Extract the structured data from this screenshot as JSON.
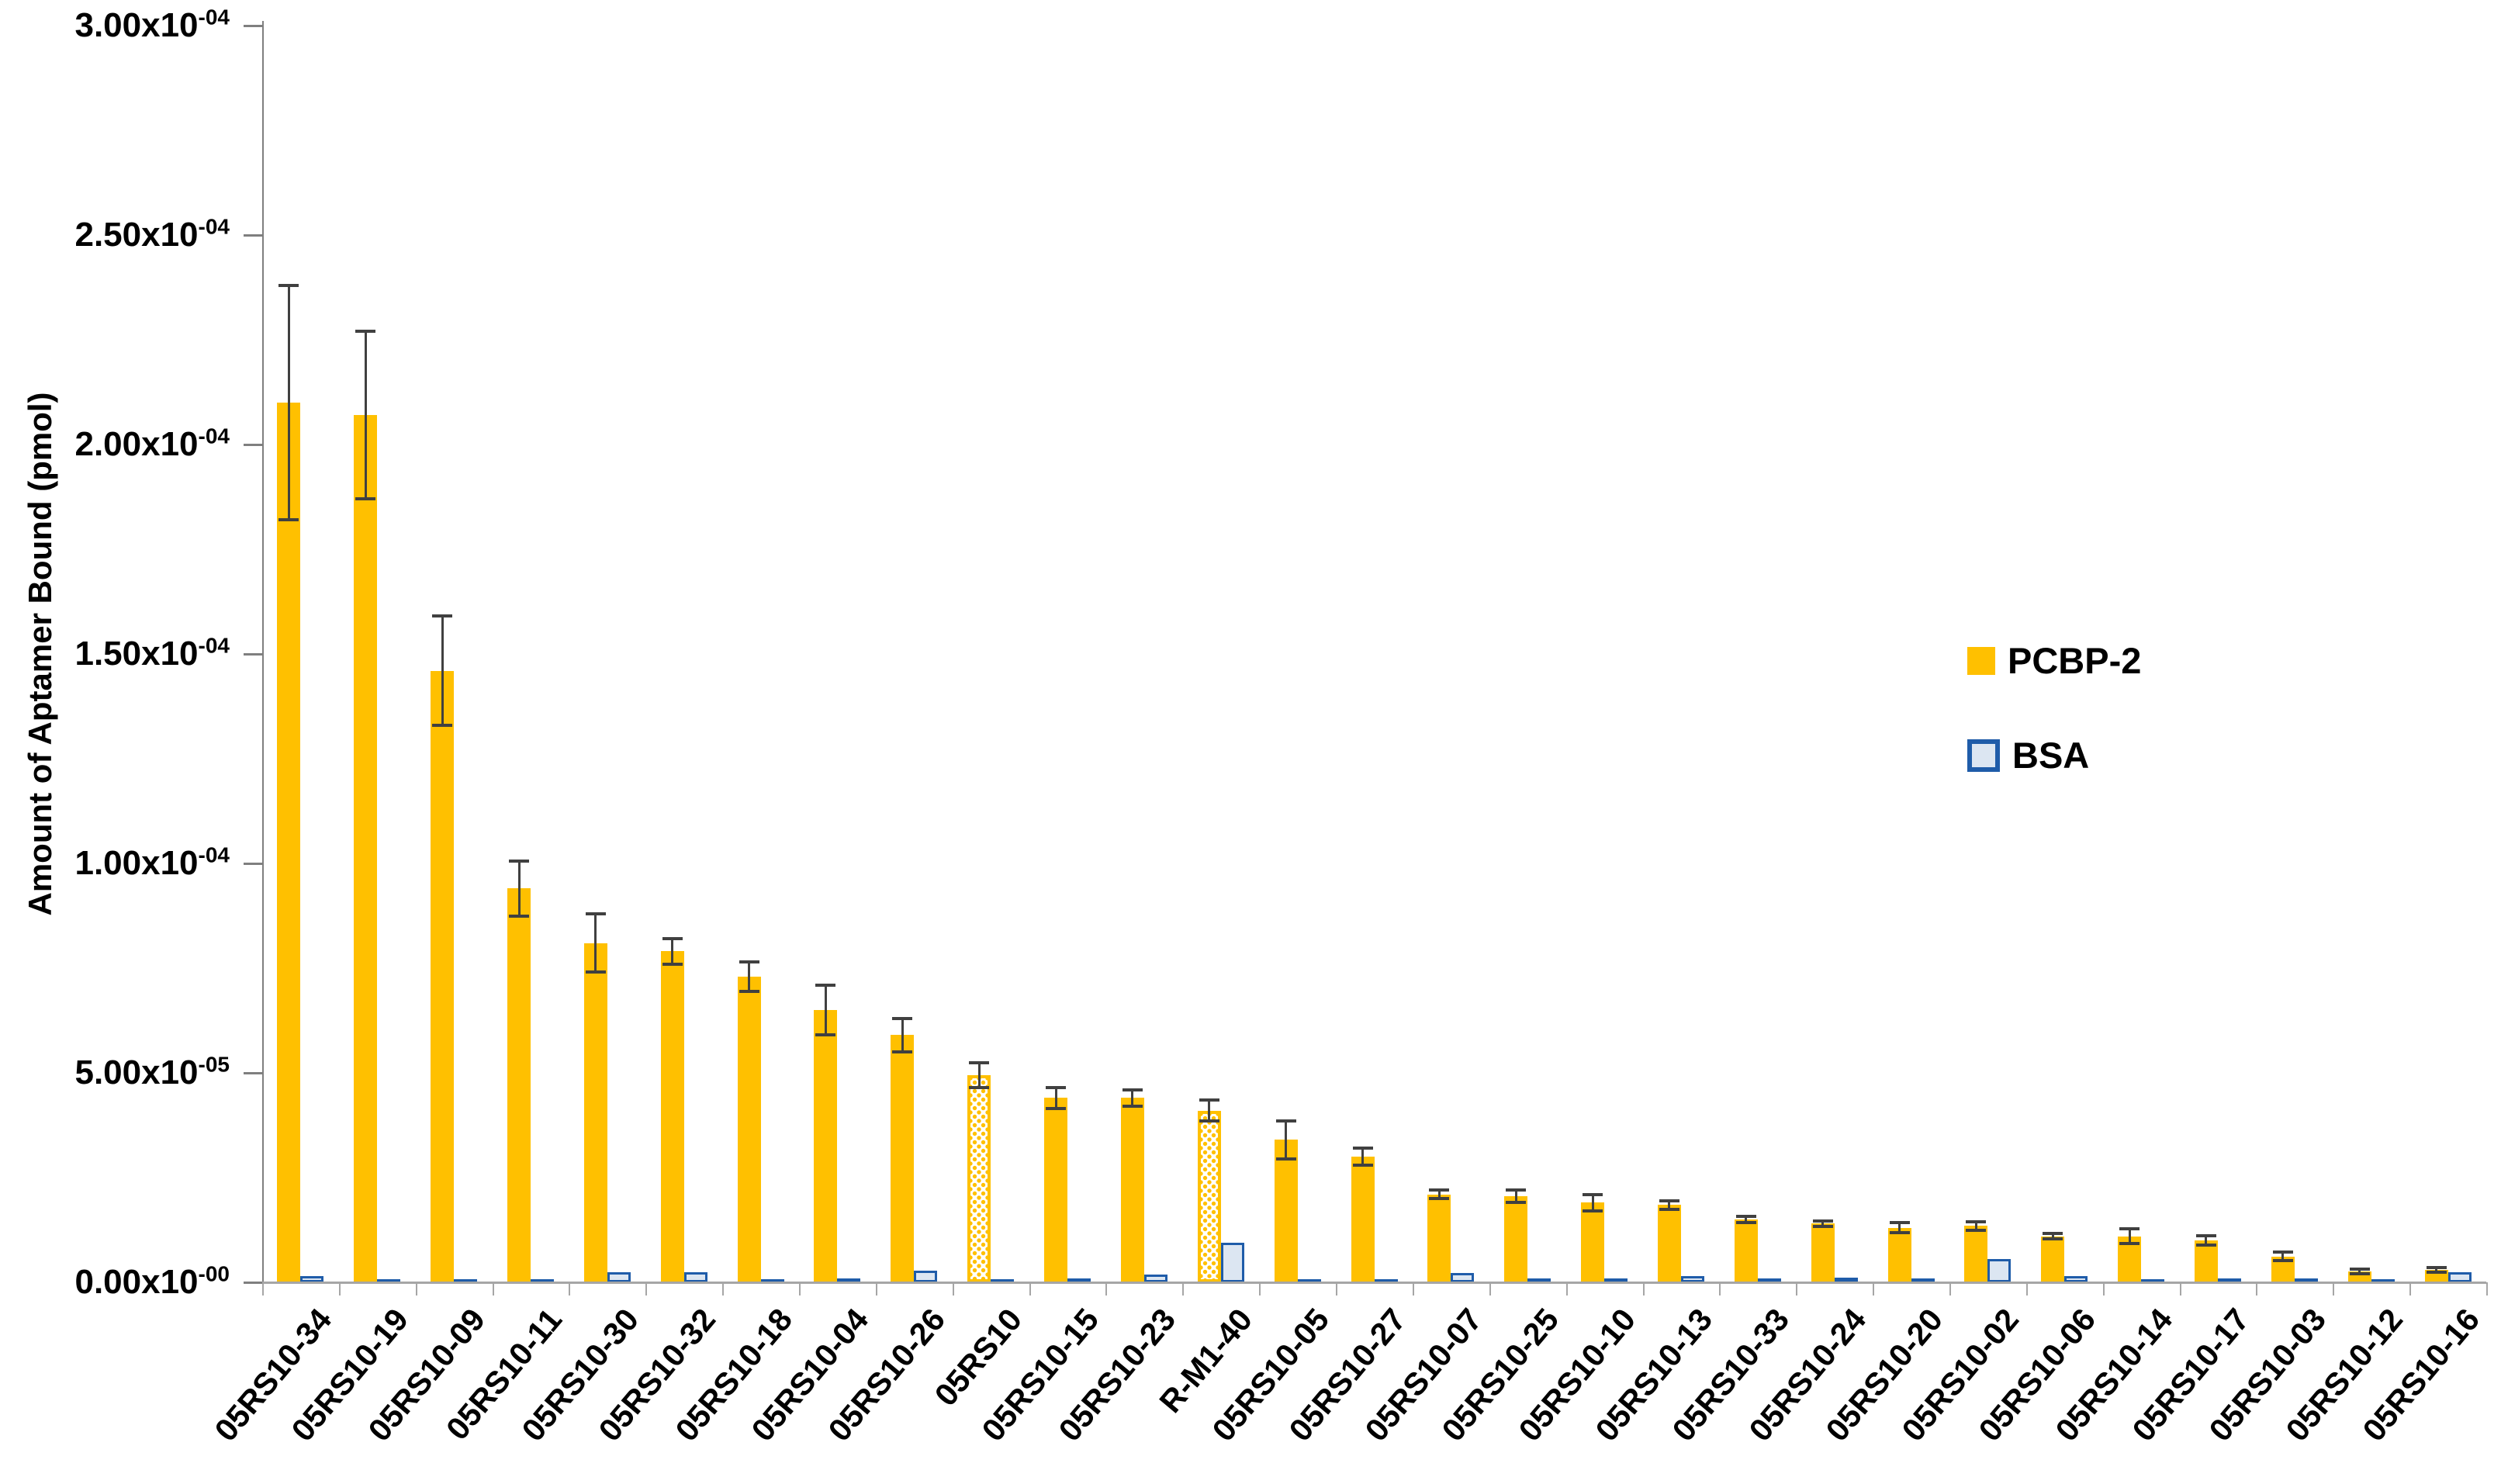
{
  "chart_data": {
    "type": "bar",
    "title": "",
    "xlabel": "",
    "ylabel": "Amount of Aptamer Bound (pmol)",
    "ylim": [
      0,
      0.0003
    ],
    "grid": false,
    "legend_position": "right-middle",
    "y_ticks": [
      {
        "value": 0.0003,
        "base": "3.00x10",
        "exp": "-04"
      },
      {
        "value": 0.00025,
        "base": "2.50x10",
        "exp": "-04"
      },
      {
        "value": 0.0002,
        "base": "2.00x10",
        "exp": "-04"
      },
      {
        "value": 0.00015,
        "base": "1.50x10",
        "exp": "-04"
      },
      {
        "value": 0.0001,
        "base": "1.00x10",
        "exp": "-04"
      },
      {
        "value": 5e-05,
        "base": "5.00x10",
        "exp": "-05"
      },
      {
        "value": 0.0,
        "base": "0.00x10",
        "exp": "-00"
      }
    ],
    "categories": [
      "05RS10-34",
      "05RS10-19",
      "05RS10-09",
      "05RS10-11",
      "05RS10-30",
      "05RS10-32",
      "05RS10-18",
      "05RS10-04",
      "05RS10-26",
      "05RS10",
      "05RS10-15",
      "05RS10-23",
      "R-M1-40",
      "05RS10-05",
      "05RS10-27",
      "05RS10-07",
      "05RS10-25",
      "05RS10-10",
      "05RS10-13",
      "05RS10-33",
      "05RS10-24",
      "05RS10-20",
      "05RS10-02",
      "05RS10-06",
      "05RS10-14",
      "05RS10-17",
      "05RS10-03",
      "05RS10-12",
      "05RS10-16"
    ],
    "series": [
      {
        "name": "PCBP-2",
        "color": "#FFC000",
        "dotted_pattern_categories": [
          "05RS10",
          "R-M1-40"
        ],
        "values": [
          0.00021,
          0.000207,
          0.000146,
          9.4e-05,
          8.1e-05,
          7.9e-05,
          7.3e-05,
          6.5e-05,
          5.9e-05,
          4.95e-05,
          4.4e-05,
          4.4e-05,
          4.1e-05,
          3.4e-05,
          3e-05,
          2.1e-05,
          2.05e-05,
          1.9e-05,
          1.85e-05,
          1.5e-05,
          1.4e-05,
          1.3e-05,
          1.35e-05,
          1.1e-05,
          1.1e-05,
          1e-05,
          6.2e-06,
          2.6e-06,
          3e-06
        ],
        "errors": [
          2.8e-05,
          2e-05,
          1.3e-05,
          6.5e-06,
          7e-06,
          3e-06,
          3.5e-06,
          6e-06,
          4e-06,
          3e-06,
          2.5e-06,
          2e-06,
          2.5e-06,
          4.5e-06,
          2e-06,
          1e-06,
          1.5e-06,
          2e-06,
          1e-06,
          8e-07,
          6e-07,
          1.2e-06,
          1e-06,
          6e-07,
          1.8e-06,
          1.2e-06,
          1e-06,
          5e-07,
          5e-07
        ]
      },
      {
        "name": "BSA",
        "fill": "#DCE6F2",
        "border": "#1F5CA9",
        "values": [
          1.5e-06,
          8e-07,
          8e-07,
          8e-07,
          2.5e-06,
          2.5e-06,
          8e-07,
          1e-06,
          2.8e-06,
          8e-07,
          1e-06,
          1.8e-06,
          9.5e-06,
          8e-07,
          7e-07,
          2.2e-06,
          1e-06,
          1e-06,
          1.5e-06,
          1e-06,
          1.2e-06,
          1e-06,
          5.5e-06,
          1.5e-06,
          8e-07,
          1e-06,
          1e-06,
          8e-07,
          2.5e-06
        ]
      }
    ]
  },
  "legend": {
    "pcbp2_label": "PCBP-2",
    "bsa_label": "BSA"
  },
  "colors": {
    "pcbp2": "#FFC000",
    "bsa_fill": "#DCE6F2",
    "bsa_border": "#1F5CA9",
    "error_bar": "#404040",
    "axis": "#7f7f7f",
    "baseline": "#a6a6a6"
  }
}
